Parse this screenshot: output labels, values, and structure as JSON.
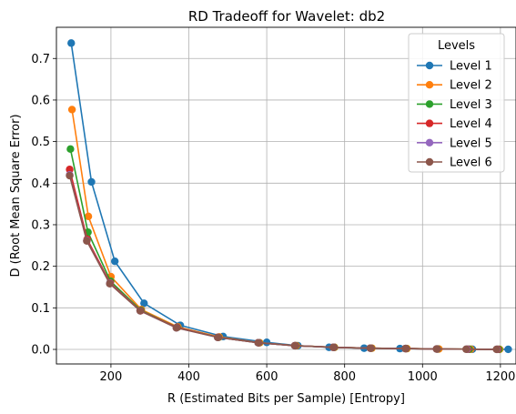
{
  "chart_data": {
    "type": "line",
    "title": "RD Tradeoff for Wavelet: db2",
    "xlabel": "R (Estimated Bits per Sample) [Entropy]",
    "ylabel": "D (Root Mean Square Error)",
    "xlim": [
      60,
      1240
    ],
    "ylim": [
      -0.035,
      0.775
    ],
    "xticks": [
      200,
      400,
      600,
      800,
      1000,
      1200
    ],
    "yticks": [
      0.0,
      0.1,
      0.2,
      0.3,
      0.4,
      0.5,
      0.6,
      0.7
    ],
    "xtick_labels": [
      "200",
      "400",
      "600",
      "800",
      "1000",
      "1200"
    ],
    "ytick_labels": [
      "0.0",
      "0.1",
      "0.2",
      "0.3",
      "0.4",
      "0.5",
      "0.6",
      "0.7"
    ],
    "grid": true,
    "legend": {
      "title": "Levels",
      "placement": "top-right"
    },
    "series": [
      {
        "name": "Level 1",
        "color": "#1f77b4",
        "x": [
          98,
          150,
          210,
          285,
          378,
          488,
          600,
          680,
          760,
          850,
          942,
          1040,
          1128,
          1220
        ],
        "y": [
          0.737,
          0.403,
          0.212,
          0.111,
          0.058,
          0.031,
          0.017,
          0.009,
          0.005,
          0.003,
          0.002,
          0.001,
          0.0005,
          0.0002
        ]
      },
      {
        "name": "Level 2",
        "color": "#ff7f0e",
        "x": [
          100,
          142,
          200,
          278,
          372,
          478,
          582,
          676,
          774,
          870,
          960,
          1042,
          1124,
          1198
        ],
        "y": [
          0.577,
          0.32,
          0.175,
          0.096,
          0.054,
          0.03,
          0.016,
          0.009,
          0.005,
          0.003,
          0.002,
          0.001,
          0.0005,
          0.0002
        ]
      },
      {
        "name": "Level 3",
        "color": "#2ca02c",
        "x": [
          96,
          141,
          199,
          277,
          370,
          476,
          580,
          674,
          773,
          868,
          958,
          1038,
          1120,
          1196
        ],
        "y": [
          0.482,
          0.282,
          0.164,
          0.094,
          0.053,
          0.029,
          0.016,
          0.009,
          0.005,
          0.003,
          0.002,
          0.001,
          0.0005,
          0.0002
        ]
      },
      {
        "name": "Level 4",
        "color": "#d62728",
        "x": [
          94,
          139,
          198,
          276,
          369,
          475,
          579,
          673,
          772,
          867,
          957,
          1037,
          1116,
          1193
        ],
        "y": [
          0.433,
          0.265,
          0.16,
          0.093,
          0.053,
          0.029,
          0.016,
          0.009,
          0.005,
          0.003,
          0.002,
          0.001,
          0.0005,
          0.0002
        ]
      },
      {
        "name": "Level 5",
        "color": "#9467bd",
        "x": [
          94,
          138,
          197,
          275,
          368,
          474,
          578,
          672,
          771,
          866,
          956,
          1036,
          1114,
          1191
        ],
        "y": [
          0.42,
          0.262,
          0.159,
          0.093,
          0.052,
          0.029,
          0.016,
          0.009,
          0.005,
          0.003,
          0.002,
          0.001,
          0.0005,
          0.0002
        ]
      },
      {
        "name": "Level 6",
        "color": "#8c564b",
        "x": [
          94,
          138,
          197,
          275,
          368,
          474,
          578,
          672,
          771,
          866,
          956,
          1036,
          1112,
          1190
        ],
        "y": [
          0.418,
          0.261,
          0.158,
          0.093,
          0.052,
          0.029,
          0.016,
          0.009,
          0.005,
          0.003,
          0.002,
          0.001,
          0.0005,
          0.0002
        ]
      }
    ]
  }
}
